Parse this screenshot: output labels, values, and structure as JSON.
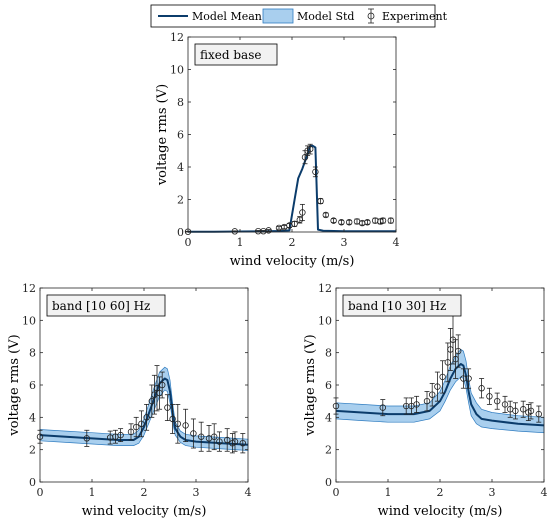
{
  "legend": {
    "mean_label": "Model Mean",
    "std_label": "Model Std",
    "exp_label": "Experiment"
  },
  "colors": {
    "mean_line": "#0b3c6b",
    "std_fill": "#a9cfee",
    "std_edge": "#2f7cc0",
    "experiment": "#222222"
  },
  "chart_data": [
    {
      "type": "line",
      "box_label": "fixed base",
      "xlabel": "wind velocity (m/s)",
      "ylabel": "voltage rms (V)",
      "xlim": [
        0,
        4
      ],
      "ylim": [
        0,
        12
      ],
      "xticks": [
        0,
        1,
        2,
        3,
        4
      ],
      "yticks": [
        0,
        2,
        4,
        6,
        8,
        10,
        12
      ],
      "grid": false,
      "legend_position": "top, outside plot",
      "model_mean": {
        "x": [
          0,
          0.5,
          1,
          1.5,
          1.8,
          1.95,
          2.05,
          2.12,
          2.2,
          2.3,
          2.35,
          2.4,
          2.45,
          2.5,
          2.6,
          3,
          3.5,
          4
        ],
        "y": [
          0.02,
          0.02,
          0.03,
          0.04,
          0.06,
          0.1,
          2.0,
          3.3,
          3.9,
          4.8,
          5.3,
          5.3,
          5.2,
          0.15,
          0.08,
          0.05,
          0.05,
          0.05
        ]
      },
      "model_std": {
        "x": [],
        "lower": [],
        "upper": []
      },
      "experiment": {
        "x": [
          0,
          0.9,
          1.35,
          1.45,
          1.55,
          1.75,
          1.85,
          1.95,
          2.05,
          2.15,
          2.2,
          2.25,
          2.3,
          2.35,
          2.45,
          2.55,
          2.65,
          2.8,
          2.95,
          3.1,
          3.25,
          3.35,
          3.45,
          3.6,
          3.7,
          3.75,
          3.9
        ],
        "y": [
          0.02,
          0.04,
          0.05,
          0.05,
          0.1,
          0.25,
          0.3,
          0.4,
          0.5,
          0.75,
          1.2,
          4.6,
          5.0,
          5.1,
          3.7,
          1.9,
          1.05,
          0.7,
          0.6,
          0.6,
          0.65,
          0.55,
          0.6,
          0.7,
          0.65,
          0.7,
          0.7
        ],
        "err": [
          0.02,
          0.03,
          0.04,
          0.04,
          0.05,
          0.08,
          0.1,
          0.12,
          0.15,
          0.2,
          0.5,
          0.4,
          0.3,
          0.3,
          0.3,
          0.15,
          0.12,
          0.12,
          0.12,
          0.12,
          0.15,
          0.12,
          0.12,
          0.15,
          0.15,
          0.15,
          0.15
        ]
      }
    },
    {
      "type": "line",
      "box_label": "band [10 60] Hz",
      "xlabel": "wind velocity (m/s)",
      "ylabel": "voltage rms (V)",
      "xlim": [
        0,
        4
      ],
      "ylim": [
        0,
        12
      ],
      "xticks": [
        0,
        1,
        2,
        3,
        4
      ],
      "yticks": [
        0,
        2,
        4,
        6,
        8,
        10,
        12
      ],
      "grid": false,
      "model_mean": {
        "x": [
          0,
          0.5,
          1,
          1.5,
          1.8,
          1.9,
          2.0,
          2.1,
          2.2,
          2.3,
          2.4,
          2.45,
          2.5,
          2.55,
          2.6,
          2.7,
          2.8,
          3,
          3.5,
          4
        ],
        "y": [
          2.9,
          2.8,
          2.7,
          2.6,
          2.6,
          2.8,
          3.4,
          4.3,
          5.2,
          6.1,
          6.4,
          6.3,
          5.6,
          4.3,
          3.3,
          2.8,
          2.6,
          2.5,
          2.4,
          2.3
        ]
      },
      "model_std": {
        "x": [
          0,
          0.5,
          1,
          1.5,
          1.8,
          1.9,
          2.0,
          2.1,
          2.2,
          2.3,
          2.4,
          2.45,
          2.5,
          2.55,
          2.6,
          2.7,
          2.8,
          3,
          3.5,
          4
        ],
        "lower": [
          2.55,
          2.45,
          2.35,
          2.25,
          2.25,
          2.4,
          2.9,
          3.7,
          4.5,
          5.3,
          5.7,
          5.6,
          4.9,
          3.7,
          2.9,
          2.45,
          2.25,
          2.15,
          2.05,
          1.95
        ],
        "upper": [
          3.25,
          3.15,
          3.05,
          2.95,
          2.95,
          3.2,
          3.9,
          4.9,
          5.9,
          6.8,
          7.1,
          7.0,
          6.3,
          4.9,
          3.7,
          3.15,
          2.95,
          2.85,
          2.75,
          2.65
        ]
      },
      "experiment": {
        "x": [
          0,
          0.9,
          1.35,
          1.45,
          1.55,
          1.75,
          1.85,
          1.95,
          2.05,
          2.15,
          2.2,
          2.25,
          2.3,
          2.35,
          2.45,
          2.55,
          2.65,
          2.8,
          2.95,
          3.1,
          3.25,
          3.35,
          3.45,
          3.6,
          3.7,
          3.75,
          3.9
        ],
        "y": [
          2.8,
          2.7,
          2.75,
          2.8,
          2.9,
          3.1,
          3.4,
          3.6,
          4.0,
          5.0,
          5.4,
          5.8,
          5.5,
          6.0,
          4.6,
          3.9,
          3.6,
          3.5,
          3.0,
          2.8,
          2.7,
          2.8,
          2.5,
          2.6,
          2.4,
          2.5,
          2.4
        ],
        "err": [
          0.4,
          0.5,
          0.4,
          0.4,
          0.4,
          0.5,
          0.6,
          0.8,
          0.8,
          1.0,
          1.2,
          1.4,
          1.0,
          0.8,
          0.8,
          0.9,
          1.2,
          1.0,
          0.9,
          0.9,
          0.8,
          0.8,
          0.6,
          0.7,
          0.6,
          0.6,
          0.6
        ]
      }
    },
    {
      "type": "line",
      "box_label": "band [10 30] Hz",
      "xlabel": "wind velocity (m/s)",
      "ylabel": "voltage rms (V)",
      "xlim": [
        0,
        4
      ],
      "ylim": [
        0,
        12
      ],
      "xticks": [
        0,
        1,
        2,
        3,
        4
      ],
      "yticks": [
        0,
        2,
        4,
        6,
        8,
        10,
        12
      ],
      "grid": false,
      "model_mean": {
        "x": [
          0,
          0.5,
          1,
          1.5,
          1.8,
          2.0,
          2.1,
          2.2,
          2.3,
          2.4,
          2.45,
          2.5,
          2.55,
          2.6,
          2.7,
          2.8,
          3,
          3.5,
          4
        ],
        "y": [
          4.4,
          4.3,
          4.2,
          4.2,
          4.4,
          5.0,
          5.6,
          6.4,
          7.0,
          7.3,
          7.2,
          6.6,
          5.6,
          4.8,
          4.2,
          3.9,
          3.8,
          3.6,
          3.5
        ]
      },
      "model_std": {
        "x": [
          0,
          0.5,
          1,
          1.5,
          1.8,
          2.0,
          2.1,
          2.2,
          2.3,
          2.4,
          2.45,
          2.5,
          2.55,
          2.6,
          2.7,
          2.8,
          3,
          3.5,
          4
        ],
        "lower": [
          3.9,
          3.8,
          3.7,
          3.7,
          3.9,
          4.4,
          5.0,
          5.7,
          6.2,
          6.5,
          6.4,
          5.8,
          4.9,
          4.1,
          3.6,
          3.4,
          3.3,
          3.15,
          3.05
        ],
        "upper": [
          4.9,
          4.8,
          4.7,
          4.7,
          4.9,
          5.6,
          6.3,
          7.2,
          7.8,
          8.2,
          8.1,
          7.5,
          6.4,
          5.5,
          4.9,
          4.5,
          4.3,
          4.1,
          4.0
        ]
      },
      "experiment": {
        "x": [
          0,
          0.9,
          1.35,
          1.45,
          1.55,
          1.75,
          1.85,
          1.95,
          2.05,
          2.15,
          2.2,
          2.25,
          2.3,
          2.35,
          2.45,
          2.55,
          2.8,
          2.95,
          3.1,
          3.25,
          3.35,
          3.45,
          3.6,
          3.7,
          3.75,
          3.9
        ],
        "y": [
          4.7,
          4.6,
          4.7,
          4.7,
          4.8,
          5.0,
          5.4,
          5.9,
          6.5,
          7.4,
          8.2,
          8.8,
          7.6,
          8.1,
          6.4,
          6.4,
          5.8,
          5.3,
          5.0,
          4.8,
          4.5,
          4.4,
          4.5,
          4.3,
          4.4,
          4.2
        ],
        "err": [
          0.5,
          0.5,
          0.5,
          0.5,
          0.5,
          0.6,
          0.7,
          0.9,
          1.0,
          1.2,
          1.3,
          1.5,
          1.2,
          1.0,
          0.6,
          0.6,
          0.6,
          0.5,
          0.5,
          0.5,
          0.5,
          0.5,
          0.5,
          0.5,
          0.5,
          0.5
        ]
      }
    }
  ]
}
